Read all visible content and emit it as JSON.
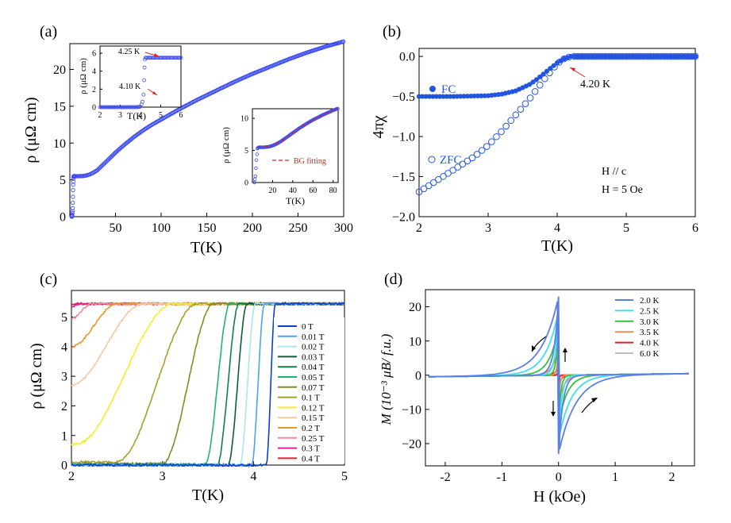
{
  "chart_data": [
    {
      "panel": "(a)",
      "type": "scatter",
      "xlabel": "T(K)",
      "ylabel": "ρ (μΩ cm)",
      "xlim": [
        0,
        300
      ],
      "ylim": [
        0,
        23.5
      ],
      "xticks": [
        50,
        100,
        150,
        200,
        250,
        300
      ],
      "yticks": [
        0,
        5,
        10,
        15,
        20
      ],
      "color": "#3d4df0",
      "series": [
        {
          "x": [
            2,
            2.3,
            2.6,
            3,
            3.3,
            3.6,
            4,
            4.2,
            4.3,
            4.5,
            5,
            6,
            8,
            10,
            14,
            18,
            22,
            26,
            30,
            35,
            40,
            50,
            60,
            70,
            80,
            90,
            100,
            120,
            140,
            160,
            180,
            200,
            220,
            240,
            260,
            280,
            300
          ],
          "y": [
            0,
            0,
            0.2,
            0.9,
            2.4,
            4.2,
            5.3,
            5.5,
            5.5,
            5.5,
            5.5,
            5.5,
            5.5,
            5.5,
            5.52,
            5.6,
            5.75,
            6.0,
            6.3,
            6.9,
            7.5,
            8.7,
            9.8,
            10.8,
            11.7,
            12.5,
            13.2,
            14.6,
            15.9,
            17.1,
            18.3,
            19.4,
            20.4,
            21.4,
            22.3,
            23.1,
            23.8
          ]
        }
      ],
      "insets": [
        {
          "xlabel": "T(K)",
          "ylabel": "ρ (μΩ cm)",
          "xlim": [
            2,
            6
          ],
          "ylim": [
            0,
            6.8
          ],
          "xticks": [
            2,
            3,
            4,
            5,
            6
          ],
          "yticks": [
            0,
            2,
            4,
            6
          ],
          "annotations": [
            "4.25 K",
            "4.10 K"
          ],
          "series": [
            {
              "x": [
                2,
                2.2,
                2.4,
                2.6,
                2.8,
                3,
                3.2,
                3.4,
                3.6,
                3.8,
                4,
                4.05,
                4.1,
                4.15,
                4.18,
                4.2,
                4.22,
                4.25,
                4.3,
                4.5,
                4.7,
                4.9,
                5.1,
                5.3,
                5.5,
                5.7,
                5.9,
                6
              ],
              "y": [
                0,
                0,
                0,
                0,
                0,
                0,
                0,
                0,
                0,
                0,
                0.05,
                0.3,
                0.6,
                1.4,
                3.0,
                4.4,
                5.3,
                5.5,
                5.5,
                5.5,
                5.5,
                5.5,
                5.5,
                5.5,
                5.5,
                5.5,
                5.5,
                5.5
              ]
            }
          ]
        },
        {
          "xlabel": "T(K)",
          "ylabel": "ρ (μΩ cm)",
          "xlim": [
            0,
            85
          ],
          "ylim": [
            0,
            11.5
          ],
          "xticks": [
            20,
            40,
            60,
            80
          ],
          "yticks": [
            0,
            5,
            10
          ],
          "legend": [
            "BG fitting"
          ],
          "series": [
            {
              "x": [
                2,
                3,
                4,
                5,
                6,
                8,
                10,
                12,
                15,
                18,
                20,
                23,
                26,
                30,
                34,
                38,
                42,
                46,
                50,
                55,
                60,
                65,
                70,
                75,
                80,
                85
              ],
              "y": [
                0,
                1.0,
                3.5,
                5.3,
                5.5,
                5.5,
                5.5,
                5.5,
                5.55,
                5.65,
                5.75,
                5.95,
                6.2,
                6.6,
                7.05,
                7.5,
                7.95,
                8.4,
                8.8,
                9.3,
                9.75,
                10.15,
                10.55,
                10.9,
                11.25,
                11.55
              ]
            },
            {
              "name": "BG fitting",
              "x": [
                5,
                10,
                20,
                30,
                40,
                50,
                60,
                70,
                80,
                85
              ],
              "y": [
                5.5,
                5.52,
                5.75,
                6.6,
                7.7,
                8.8,
                9.75,
                10.55,
                11.25,
                11.55
              ]
            }
          ]
        }
      ]
    },
    {
      "panel": "(b)",
      "type": "scatter",
      "xlabel": "T(K)",
      "ylabel": "4πχ",
      "xlim": [
        2,
        6
      ],
      "ylim": [
        -2.0,
        0.1
      ],
      "xticks": [
        2,
        3,
        4,
        5,
        6
      ],
      "yticks": [
        0.0,
        -0.5,
        -1.0,
        -1.5,
        -2.0
      ],
      "annotations": [
        "4.20 K",
        "H // c",
        "H = 5 Oe"
      ],
      "color": "#2255e0",
      "series": [
        {
          "name": "FC",
          "filled": true,
          "x": [
            2,
            2.5,
            3,
            3.2,
            3.4,
            3.6,
            3.7,
            3.8,
            3.9,
            4.0,
            4.1,
            4.2,
            4.3,
            5,
            6
          ],
          "y": [
            -0.5,
            -0.5,
            -0.49,
            -0.47,
            -0.43,
            -0.35,
            -0.29,
            -0.22,
            -0.15,
            -0.08,
            -0.03,
            0,
            0,
            0,
            0
          ]
        },
        {
          "name": "ZFC",
          "filled": false,
          "x": [
            2,
            2.2,
            2.4,
            2.6,
            2.8,
            3,
            3.2,
            3.4,
            3.6,
            3.8,
            4,
            4.1,
            4.2,
            4.3,
            5,
            6
          ],
          "y": [
            -1.69,
            -1.58,
            -1.47,
            -1.36,
            -1.25,
            -1.11,
            -0.93,
            -0.73,
            -0.53,
            -0.3,
            -0.09,
            -0.03,
            0,
            0,
            0,
            0
          ]
        }
      ]
    },
    {
      "panel": "(c)",
      "type": "line",
      "xlabel": "T(K)",
      "ylabel": "ρ (μΩ cm)",
      "xlim": [
        2,
        5
      ],
      "ylim": [
        0,
        5.9
      ],
      "xticks": [
        2,
        3,
        4,
        5
      ],
      "yticks": [
        0,
        1,
        2,
        3,
        4,
        5
      ],
      "plateau": 5.45,
      "series": [
        {
          "name": "0 T",
          "color": "#0a3fd0",
          "onset": 4.14,
          "end": 4.24,
          "start": 0
        },
        {
          "name": "0.01 T",
          "color": "#46a4f0",
          "onset": 3.98,
          "end": 4.12,
          "start": 0
        },
        {
          "name": "0.02 T",
          "color": "#a8e6f2",
          "onset": 3.85,
          "end": 4.02,
          "start": 0
        },
        {
          "name": "0.03 T",
          "color": "#0d5c34",
          "onset": 3.72,
          "end": 3.93,
          "start": 0
        },
        {
          "name": "0.04 T",
          "color": "#118040",
          "onset": 3.6,
          "end": 3.84,
          "start": 0
        },
        {
          "name": "0.05 T",
          "color": "#1fb46c",
          "onset": 3.47,
          "end": 3.74,
          "start": 0.02
        },
        {
          "name": "0.07 T",
          "color": "#8a8a1e",
          "onset": 3.0,
          "end": 3.56,
          "start": 0.05
        },
        {
          "name": "0.1 T",
          "color": "#a8a028",
          "onset": 2.5,
          "end": 3.38,
          "start": 0.1
        },
        {
          "name": "0.12 T",
          "color": "#f2f02a",
          "onset": 2.05,
          "end": 3.12,
          "start": 0.7
        },
        {
          "name": "0.15 T",
          "color": "#f5c8a0",
          "onset": 2.0,
          "end": 2.78,
          "start": 2.7
        },
        {
          "name": "0.2 T",
          "color": "#e89a2a",
          "onset": 2.0,
          "end": 2.5,
          "start": 4.0
        },
        {
          "name": "0.25 T",
          "color": "#f08aa0",
          "onset": 2.0,
          "end": 2.22,
          "start": 4.95
        },
        {
          "name": "0.3 T",
          "color": "#e8209a",
          "onset": 2.0,
          "end": 2.08,
          "start": 5.35
        },
        {
          "name": "0.4 T",
          "color": "#e0202a",
          "onset": 2.0,
          "end": 2.02,
          "start": 5.42
        }
      ]
    },
    {
      "panel": "(d)",
      "type": "line",
      "xlabel": "H (kOe)",
      "ylabel": "M (10⁻³ μB/ f.u.)",
      "xlim": [
        -2.35,
        2.4
      ],
      "ylim": [
        -26.5,
        25
      ],
      "xticks": [
        -2,
        -1,
        0,
        1,
        2
      ],
      "yticks": [
        -20,
        -10,
        0,
        10,
        20
      ],
      "series": [
        {
          "name": "2.0 K",
          "color": "#5b7fe6",
          "peak": 23,
          "width": 0.3
        },
        {
          "name": "2.5 K",
          "color": "#40dcf2",
          "peak": 19,
          "width": 0.22
        },
        {
          "name": "3.0 K",
          "color": "#35c23a",
          "peak": 14.5,
          "width": 0.15
        },
        {
          "name": "3.5 K",
          "color": "#f08c5a",
          "peak": 8,
          "width": 0.1
        },
        {
          "name": "4.0 K",
          "color": "#e02020",
          "peak": 3,
          "width": 0.05
        },
        {
          "name": "6.0 K",
          "color": "#bdbdbd",
          "peak": 0,
          "width": 0.05
        }
      ]
    }
  ],
  "panel_labels": [
    "(a)",
    "(b)",
    "(c)",
    "(d)"
  ]
}
